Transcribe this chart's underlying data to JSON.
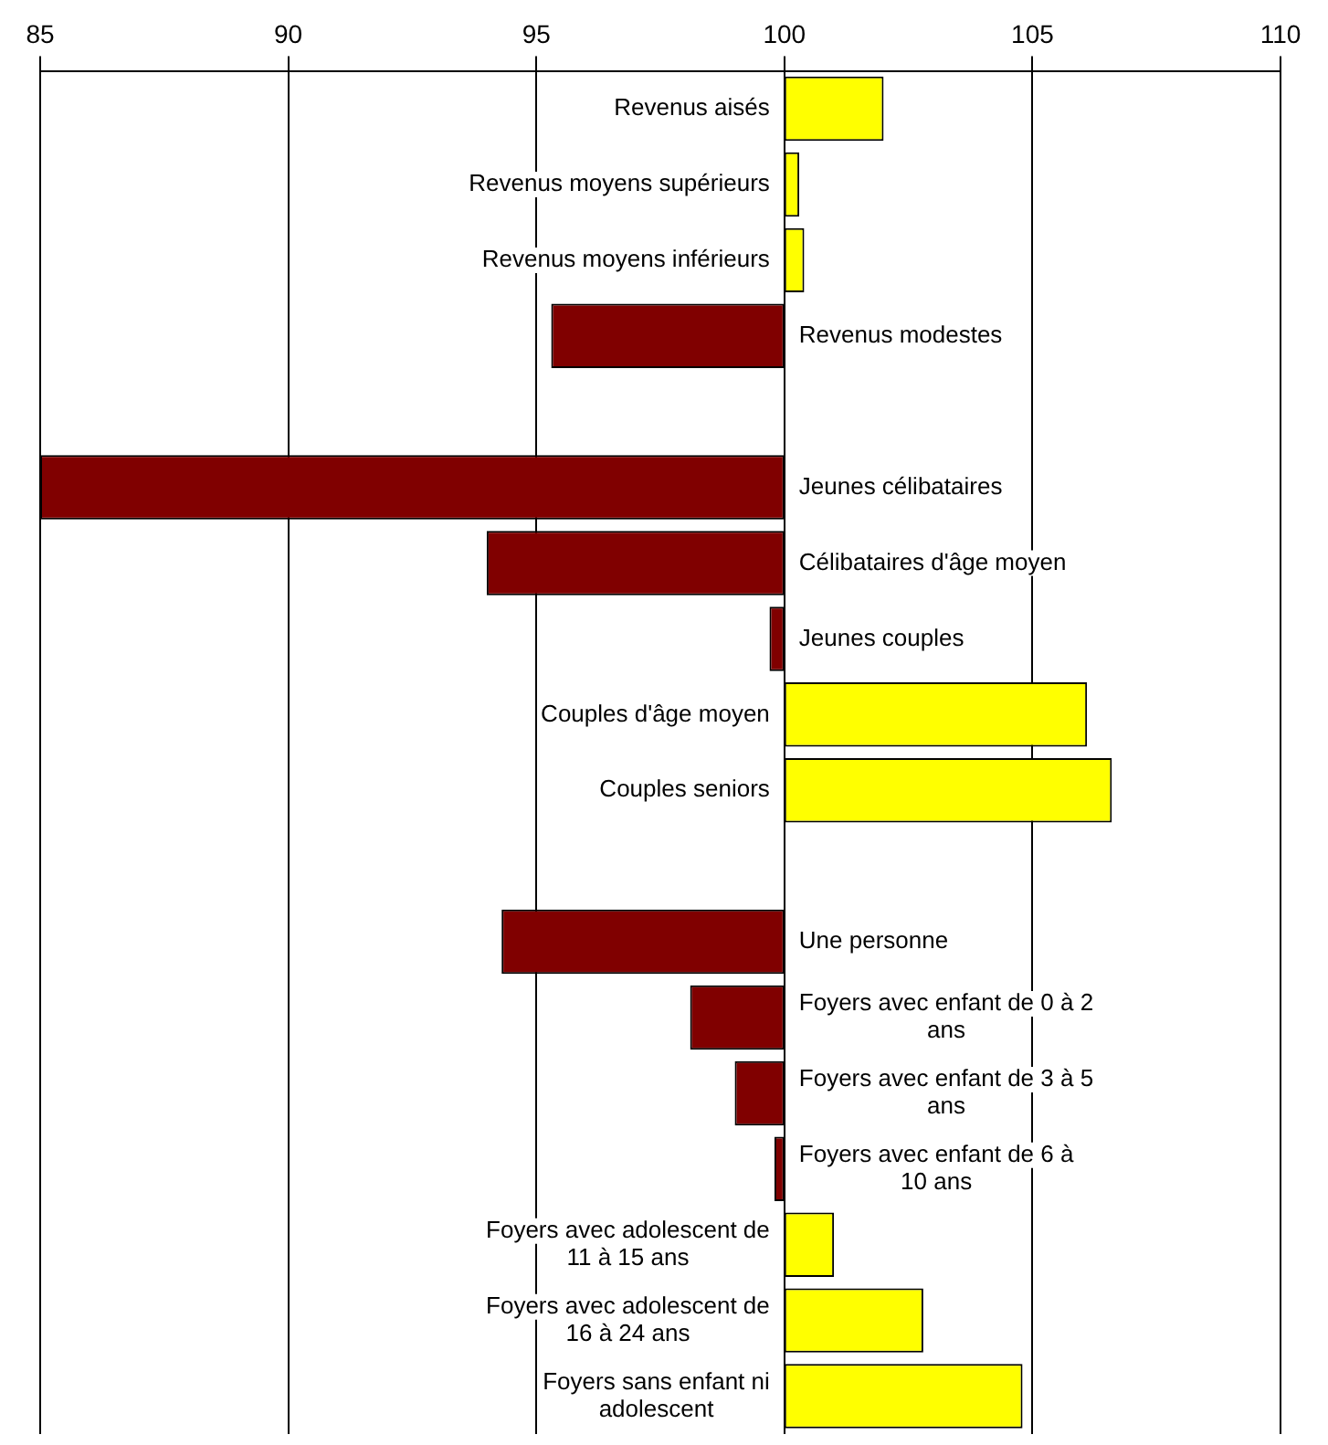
{
  "chart_data": {
    "type": "bar",
    "orientation": "horizontal",
    "categories": [
      "Revenus aisés",
      "Revenus moyens supérieurs",
      "Revenus moyens inférieurs",
      "Revenus modestes",
      null,
      "Jeunes célibataires",
      "Célibataires d'âge moyen",
      "Jeunes couples",
      "Couples d'âge moyen",
      "Couples seniors",
      null,
      "Une personne",
      "Foyers avec enfant de 0 à 2 ans",
      "Foyers avec enfant de 3 à 5 ans",
      "Foyers avec enfant de 6 à 10 ans",
      "Foyers avec adolescent de 11 à 15 ans",
      "Foyers avec adolescent de 16 à 24 ans",
      "Foyers sans enfant ni adolescent"
    ],
    "base": [
      100,
      100,
      100,
      100,
      null,
      100,
      100,
      100,
      100,
      100,
      null,
      100,
      100,
      100,
      100,
      100,
      100,
      100
    ],
    "values": [
      2.0,
      0.3,
      0.4,
      -4.7,
      null,
      -15.0,
      -6.0,
      -0.3,
      6.1,
      6.6,
      null,
      -5.7,
      -1.9,
      -1.0,
      -0.2,
      1.0,
      2.8,
      4.8
    ],
    "colors": [
      "#ffff00",
      "#ffff00",
      "#ffff00",
      "#800000",
      null,
      "#800000",
      "#800000",
      "#800000",
      "#ffff00",
      "#ffff00",
      null,
      "#800000",
      "#800000",
      "#800000",
      "#800000",
      "#ffff00",
      "#ffff00",
      "#ffff00"
    ],
    "xlim": [
      85,
      110
    ],
    "xticks": [
      85,
      90,
      95,
      100,
      105,
      110
    ],
    "grid": "x"
  }
}
